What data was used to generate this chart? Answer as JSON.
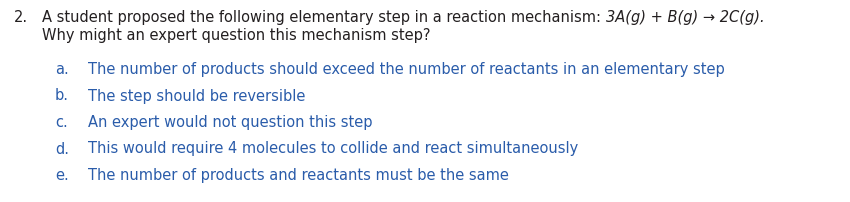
{
  "background_color": "#ffffff",
  "fig_width": 8.5,
  "fig_height": 2.02,
  "dpi": 100,
  "question_number": "2.",
  "question_line1_plain": "A student proposed the following elementary step in a reaction mechanism: ",
  "question_line1_formula": "3A(g) + B(g) → 2C(g).",
  "question_line2": "Why might an expert question this mechanism step?",
  "options": [
    {
      "label": "a.",
      "text": "The number of products should exceed the number of reactants in an elementary step"
    },
    {
      "label": "b.",
      "text": "The step should be reversible"
    },
    {
      "label": "c.",
      "text": "An expert would not question this step"
    },
    {
      "label": "d.",
      "text": "This would require 4 molecules to collide and react simultaneously"
    },
    {
      "label": "e.",
      "text": "The number of products and reactants must be the same"
    }
  ],
  "text_color": "#231f20",
  "option_color": "#2a5caa",
  "question_fontsize": 10.5,
  "option_fontsize": 10.5
}
